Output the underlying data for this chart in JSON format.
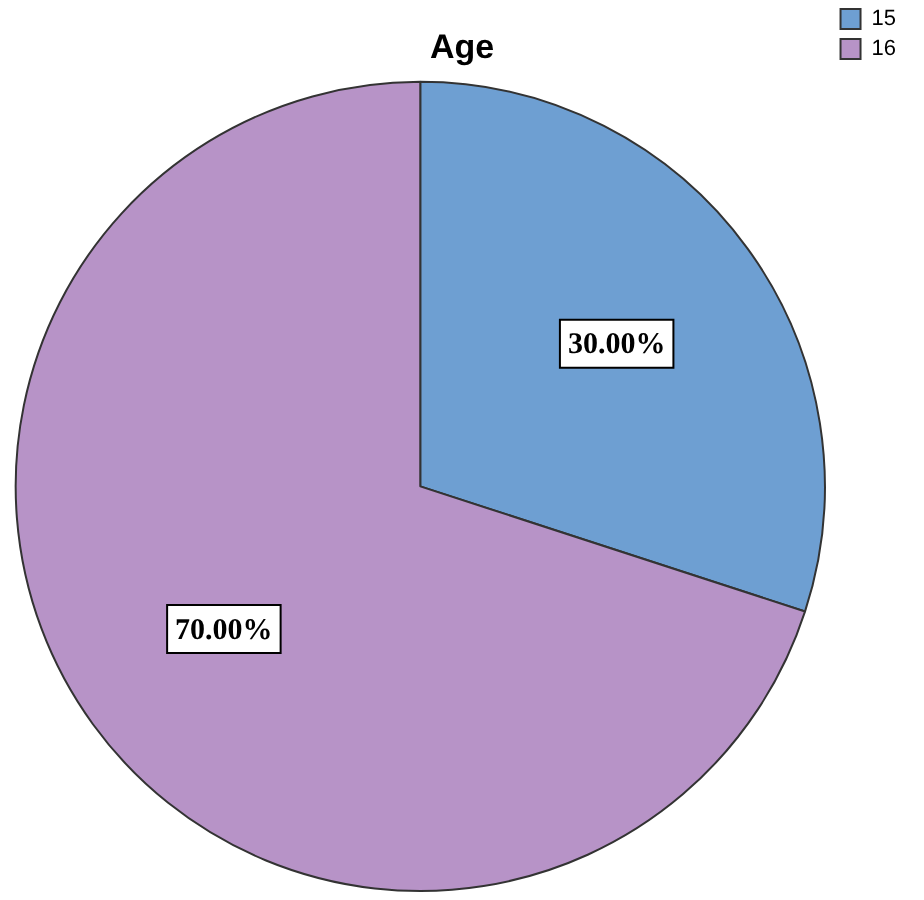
{
  "chart_data": {
    "type": "pie",
    "title": "Age",
    "categories": [
      "15",
      "16"
    ],
    "values": [
      30,
      70
    ],
    "colors": [
      "#6e9fd2",
      "#b793c7"
    ],
    "value_labels": [
      "30.00%",
      "70.00%"
    ],
    "legend": "top right"
  }
}
